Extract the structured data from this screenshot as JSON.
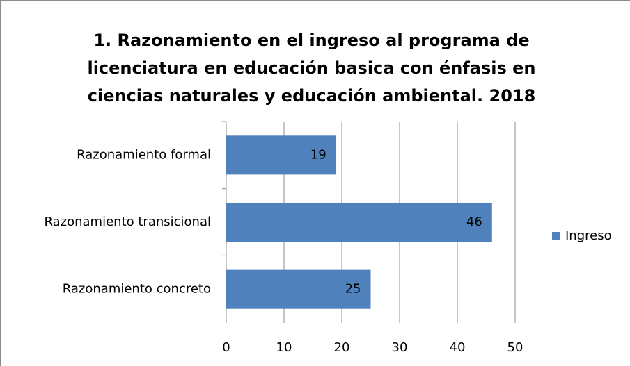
{
  "chart_data": {
    "type": "bar",
    "orientation": "horizontal",
    "title": "1. Razonamiento en el ingreso al programa de licenciatura en educación basica con énfasis en ciencias naturales y educación ambiental. 2018",
    "categories": [
      "Razonamiento formal",
      "Razonamiento transicional",
      "Razonamiento concreto"
    ],
    "series": [
      {
        "name": "Ingreso",
        "color": "#4f81bd",
        "values": [
          19,
          46,
          25
        ]
      }
    ],
    "xlim": [
      0,
      50
    ],
    "xticks": [
      0,
      10,
      20,
      30,
      40,
      50
    ],
    "grid": true,
    "legend": "right"
  }
}
